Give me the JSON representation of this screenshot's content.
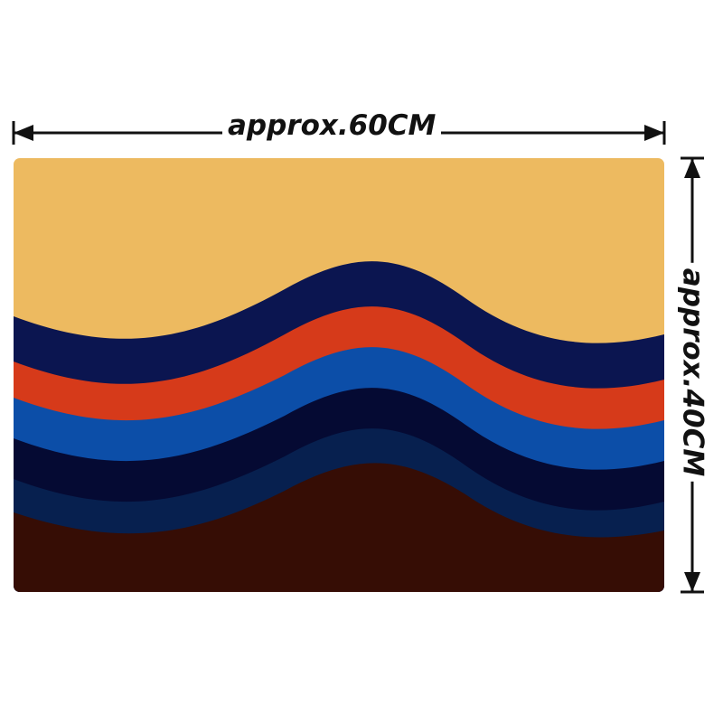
{
  "dimensions": {
    "width_label": "approx.60CM",
    "height_label": "approx.40CM"
  },
  "colors": {
    "sky": "#EDBA60",
    "band_navy": "#0B1550",
    "band_red": "#D63A1A",
    "band_blue": "#0C4EA8",
    "band_dark_navy": "#050A33",
    "band_deep_blue": "#07204F",
    "ground": "#360D05",
    "dimension_line": "#111111"
  },
  "icons": [
    "arrow-left-icon",
    "arrow-right-icon",
    "arrow-up-icon",
    "arrow-down-icon"
  ]
}
